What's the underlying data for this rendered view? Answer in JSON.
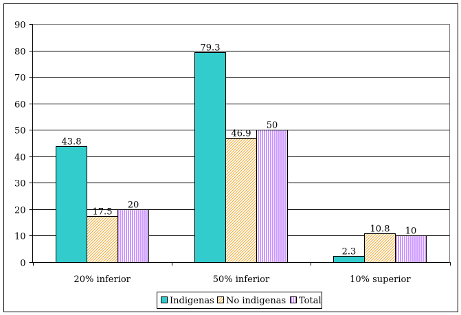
{
  "chart_data": {
    "type": "bar",
    "title": "",
    "xlabel": "",
    "ylabel": "",
    "categories": [
      "20% inferior",
      "50% inferior",
      "10% superior"
    ],
    "series": [
      {
        "name": "Indigenas",
        "values": [
          43.8,
          79.3,
          2.3
        ],
        "labels": [
          "43.8",
          "79.3",
          "2.3"
        ],
        "color": "#33CCCC",
        "pattern": "solid"
      },
      {
        "name": "No indigenas",
        "values": [
          17.5,
          46.9,
          10.8
        ],
        "labels": [
          "17.5",
          "46.9",
          "10.8"
        ],
        "color": "#F0A830",
        "pattern": "diagonal-hatch"
      },
      {
        "name": "Total",
        "values": [
          20,
          50,
          10
        ],
        "labels": [
          "20",
          "50",
          "10"
        ],
        "color": "#CC99FF",
        "pattern": "vertical-stripes"
      }
    ],
    "ylim": [
      0,
      90
    ],
    "yticks": [
      0,
      10,
      20,
      30,
      40,
      50,
      60,
      70,
      80,
      90
    ],
    "ytick_labels": [
      "0",
      "10",
      "20",
      "30",
      "40",
      "50",
      "60",
      "70",
      "80",
      "90"
    ],
    "grid": true,
    "legend_position": "bottom-center"
  }
}
